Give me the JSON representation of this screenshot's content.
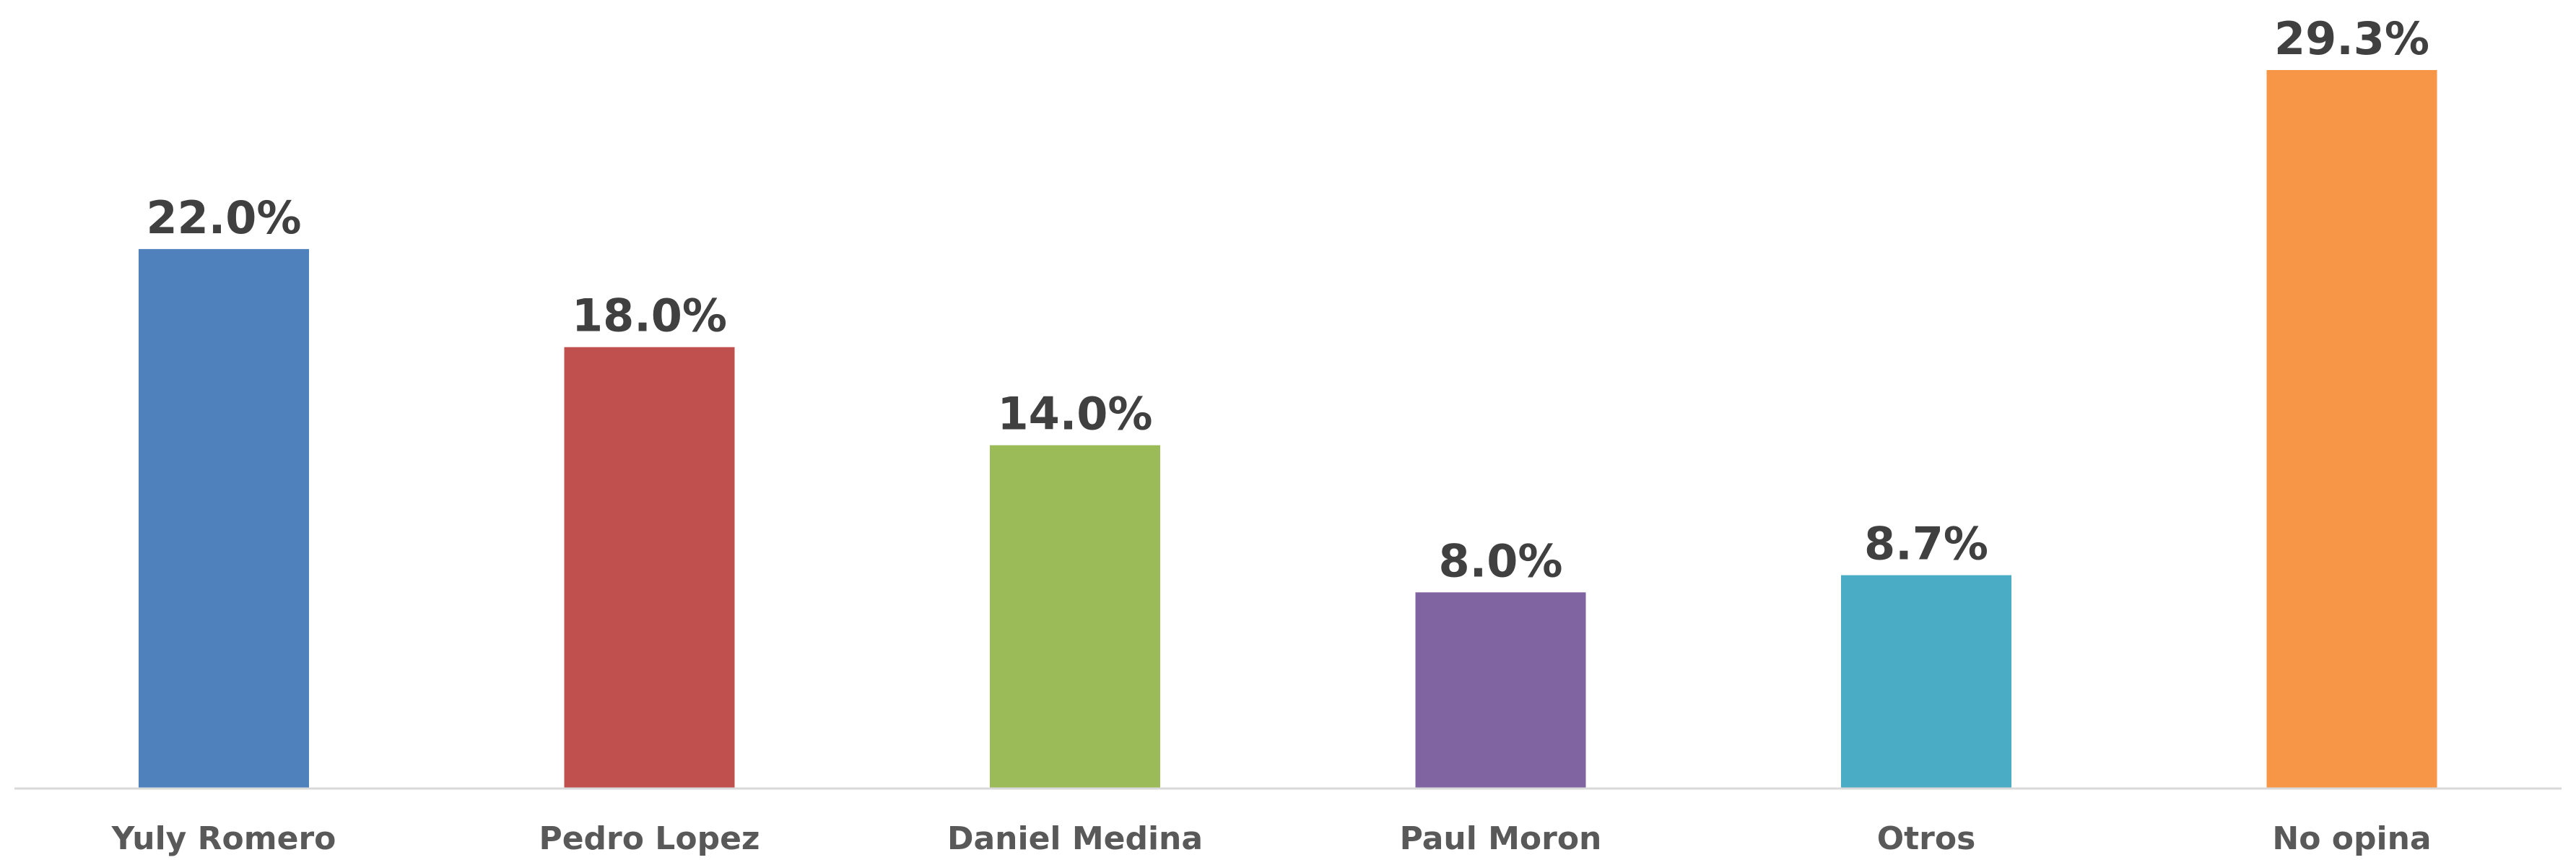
{
  "chart_data": {
    "type": "bar",
    "categories": [
      "Yuly Romero",
      "Pedro Lopez",
      "Daniel Medina",
      "Paul Moron",
      "Otros",
      "No opina"
    ],
    "values": [
      22.0,
      18.0,
      14.0,
      8.0,
      8.7,
      29.3
    ],
    "data_labels": [
      "22.0%",
      "18.0%",
      "14.0%",
      "8.0%",
      "8.7%",
      "29.3%"
    ],
    "colors": [
      "#4F81BD",
      "#C0504D",
      "#9BBB59",
      "#8064A2",
      "#4BACC6",
      "#F79646"
    ],
    "axis_color": "#D9D9D9",
    "title": "",
    "xlabel": "",
    "ylabel": "",
    "ylim": [
      0,
      29.3
    ],
    "grid": false,
    "legend": "none"
  }
}
